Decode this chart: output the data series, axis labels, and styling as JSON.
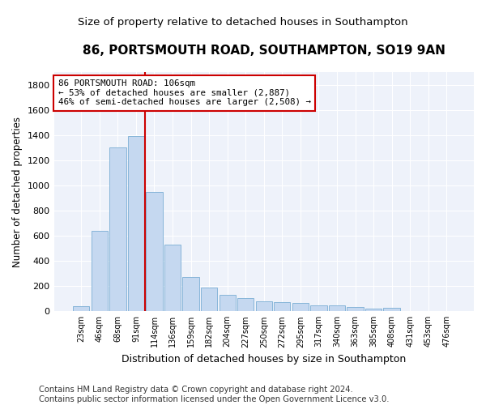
{
  "title": "86, PORTSMOUTH ROAD, SOUTHAMPTON, SO19 9AN",
  "subtitle": "Size of property relative to detached houses in Southampton",
  "xlabel": "Distribution of detached houses by size in Southampton",
  "ylabel": "Number of detached properties",
  "categories": [
    "23sqm",
    "46sqm",
    "68sqm",
    "91sqm",
    "114sqm",
    "136sqm",
    "159sqm",
    "182sqm",
    "204sqm",
    "227sqm",
    "250sqm",
    "272sqm",
    "295sqm",
    "317sqm",
    "340sqm",
    "363sqm",
    "385sqm",
    "408sqm",
    "431sqm",
    "453sqm",
    "476sqm"
  ],
  "values": [
    40,
    640,
    1300,
    1390,
    950,
    530,
    270,
    190,
    130,
    105,
    80,
    70,
    65,
    50,
    50,
    35,
    20,
    30,
    5,
    5,
    5
  ],
  "bar_color": "#c5d8f0",
  "bar_edge_color": "#7aaed4",
  "property_line_color": "#cc0000",
  "annotation_text": "86 PORTSMOUTH ROAD: 106sqm\n← 53% of detached houses are smaller (2,887)\n46% of semi-detached houses are larger (2,508) →",
  "annotation_box_color": "#ffffff",
  "annotation_box_edge": "#cc0000",
  "ylim": [
    0,
    1900
  ],
  "yticks": [
    0,
    200,
    400,
    600,
    800,
    1000,
    1200,
    1400,
    1600,
    1800
  ],
  "footer": "Contains HM Land Registry data © Crown copyright and database right 2024.\nContains public sector information licensed under the Open Government Licence v3.0.",
  "background_color": "#ffffff",
  "plot_bg_color": "#eef2fa",
  "title_fontsize": 11,
  "subtitle_fontsize": 9.5,
  "footer_fontsize": 7.2
}
